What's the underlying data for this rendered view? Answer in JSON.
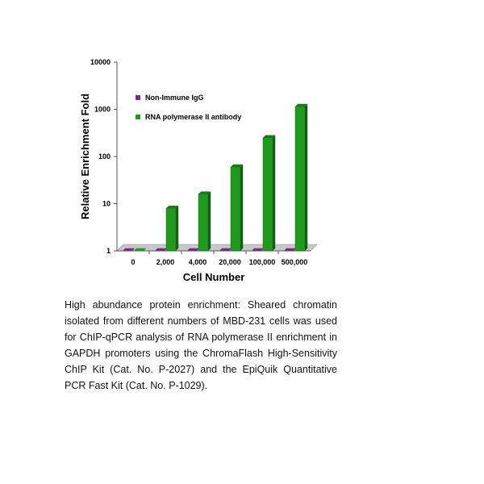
{
  "chart_data": {
    "type": "bar",
    "categories": [
      "0",
      "2,000",
      "4,000",
      "20,000",
      "100,000",
      "500,000"
    ],
    "series": [
      {
        "name": "Non-Immune IgG",
        "color": "#7B2A8C",
        "values": [
          1,
          1,
          1,
          1,
          1,
          1
        ]
      },
      {
        "name": "RNA polymerase II antibody",
        "color": "#1F9A1F",
        "values": [
          1,
          8,
          16,
          60,
          250,
          1150
        ]
      }
    ],
    "xlabel": "Cell Number",
    "ylabel": "Relative Enrichment Fold",
    "yscale": "log",
    "ylim": [
      1,
      10000
    ],
    "yticks": [
      "1",
      "10",
      "100",
      "1000",
      "10000"
    ],
    "legend_position": "top-left",
    "grid": false,
    "style": "3d-column"
  },
  "caption": "High abundance protein enrichment: Sheared chromatin isolated from different numbers of MBD-231 cells was used for ChIP-qPCR analysis of RNA polymerase II enrichment in GAPDH promoters using the ChromaFlash High-Sensitivity ChIP Kit (Cat. No. P-2027) and the EpiQuik Quantitative PCR Fast Kit (Cat. No. P-1029)."
}
